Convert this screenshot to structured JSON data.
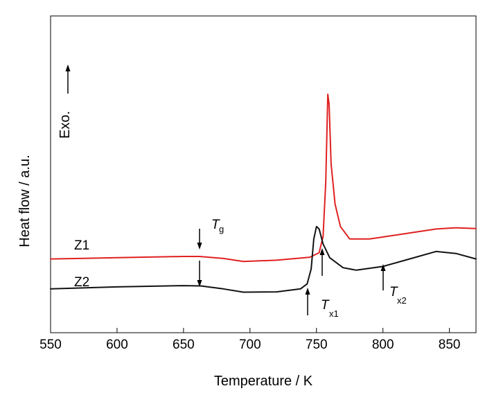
{
  "chart_data": {
    "type": "line",
    "xlabel": "Temperature / K",
    "ylabel": "Heat flow / a.u.",
    "xlim": [
      550,
      870
    ],
    "ylim": [
      0,
      1
    ],
    "xticks": [
      550,
      600,
      650,
      700,
      750,
      800,
      850
    ],
    "y_tick_labels": "none",
    "grid": false,
    "exo_label": "Exo.",
    "series": [
      {
        "name": "Z1",
        "color": "#e02020",
        "points": [
          [
            550,
            0.24
          ],
          [
            600,
            0.245
          ],
          [
            650,
            0.25
          ],
          [
            662,
            0.25
          ],
          [
            680,
            0.242
          ],
          [
            695,
            0.23
          ],
          [
            720,
            0.235
          ],
          [
            745,
            0.247
          ],
          [
            752,
            0.265
          ],
          [
            755,
            0.33
          ],
          [
            757,
            0.55
          ],
          [
            758.5,
            0.9
          ],
          [
            759.5,
            0.86
          ],
          [
            761,
            0.62
          ],
          [
            764,
            0.46
          ],
          [
            768,
            0.37
          ],
          [
            775,
            0.32
          ],
          [
            790,
            0.32
          ],
          [
            815,
            0.34
          ],
          [
            840,
            0.36
          ],
          [
            855,
            0.365
          ],
          [
            870,
            0.362
          ]
        ]
      },
      {
        "name": "Z2",
        "color": "#111111",
        "points": [
          [
            550,
            0.12
          ],
          [
            600,
            0.128
          ],
          [
            650,
            0.133
          ],
          [
            663,
            0.132
          ],
          [
            680,
            0.12
          ],
          [
            695,
            0.107
          ],
          [
            720,
            0.108
          ],
          [
            738,
            0.12
          ],
          [
            743,
            0.14
          ],
          [
            746,
            0.2
          ],
          [
            748,
            0.32
          ],
          [
            750,
            0.37
          ],
          [
            752,
            0.36
          ],
          [
            755,
            0.3
          ],
          [
            760,
            0.245
          ],
          [
            770,
            0.205
          ],
          [
            780,
            0.195
          ],
          [
            800,
            0.21
          ],
          [
            820,
            0.24
          ],
          [
            840,
            0.27
          ],
          [
            855,
            0.262
          ],
          [
            870,
            0.24
          ]
        ]
      }
    ],
    "annotations": [
      {
        "text": "T",
        "sub": "g",
        "x": 663
      },
      {
        "text": "T",
        "sub": "x1",
        "x": 744
      },
      {
        "text": "T",
        "sub": "x2",
        "x": 799
      }
    ]
  }
}
